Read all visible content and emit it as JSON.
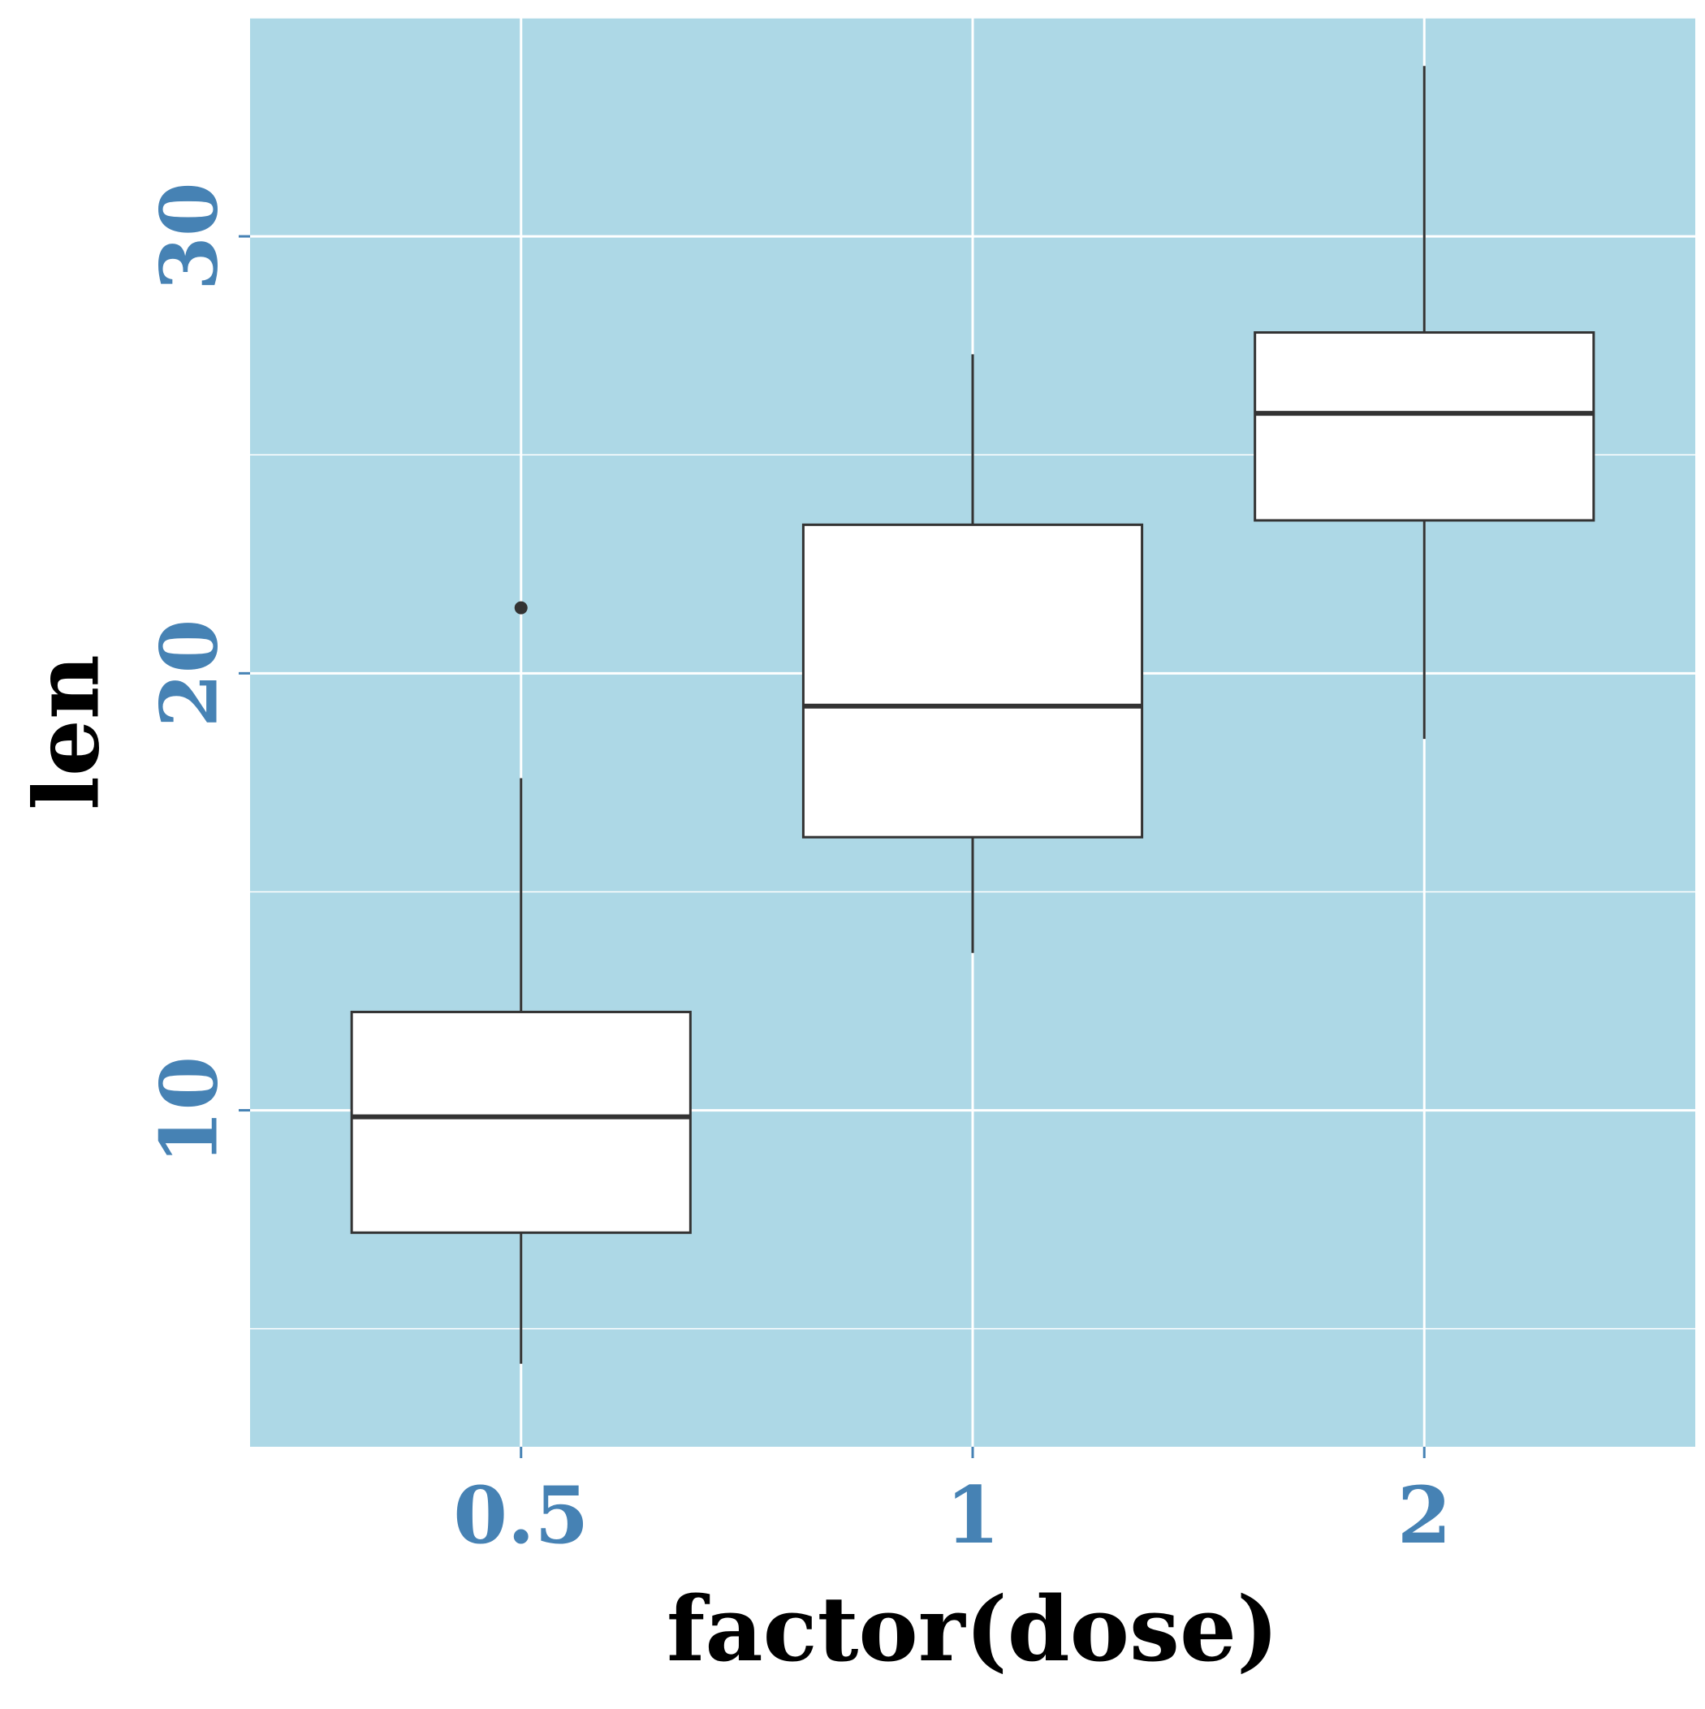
{
  "chart_data": {
    "type": "boxplot",
    "xlabel": "factor(dose)",
    "ylabel": "len",
    "categories": [
      "0.5",
      "1",
      "2"
    ],
    "boxes": [
      {
        "category": "0.5",
        "whisker_low": 4.2,
        "q1": 7.2,
        "median": 9.85,
        "q3": 12.25,
        "whisker_high": 17.6,
        "outliers": [
          21.5
        ]
      },
      {
        "category": "1",
        "whisker_low": 13.6,
        "q1": 16.25,
        "median": 19.25,
        "q3": 23.4,
        "whisker_high": 27.3,
        "outliers": []
      },
      {
        "category": "2",
        "whisker_low": 18.5,
        "q1": 23.5,
        "median": 25.95,
        "q3": 27.8,
        "whisker_high": 33.9,
        "outliers": []
      }
    ],
    "yticks": [
      10,
      20,
      30
    ],
    "ylim": [
      2.3,
      35.0
    ],
    "grid": true,
    "colors": {
      "panel_background": "#add8e6",
      "grid": "#ffffff",
      "box_fill": "#ffffff",
      "box_line": "#333333",
      "tick_label": "#4682b4",
      "axis_title": "#000000"
    }
  }
}
